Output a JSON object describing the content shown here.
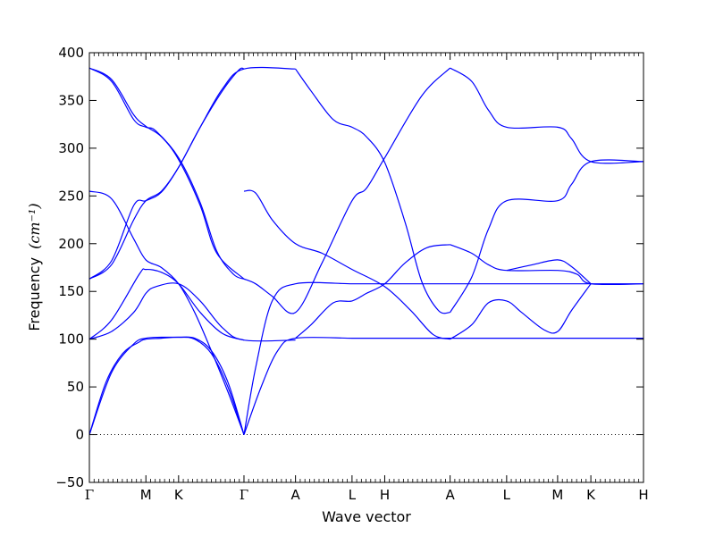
{
  "chart_data": {
    "type": "line",
    "xlabel": "Wave vector",
    "ylabel": "Frequency",
    "ylabel_unit": "(cm⁻¹)",
    "ylim": [
      -50,
      400
    ],
    "yticks": [
      -50,
      0,
      50,
      100,
      150,
      200,
      250,
      300,
      350,
      400
    ],
    "ytick_labels": [
      "−50",
      "0",
      "50",
      "100",
      "150",
      "200",
      "250",
      "300",
      "350",
      "400"
    ],
    "zero_line": "dotted",
    "grid": false,
    "color": "#0000ff",
    "x_path": [
      {
        "label": "Γ",
        "pos": 0.0
      },
      {
        "label": "M",
        "pos": 0.102
      },
      {
        "label": "K",
        "pos": 0.161
      },
      {
        "label": "Γ",
        "pos": 0.279
      },
      {
        "label": "A",
        "pos": 0.372
      },
      {
        "label": "L",
        "pos": 0.474
      },
      {
        "label": "H",
        "pos": 0.533
      },
      {
        "label": "A",
        "pos": 0.651
      },
      {
        "label": "L",
        "pos": 0.753
      },
      {
        "label": "M",
        "pos": 0.845
      },
      {
        "label": "K",
        "pos": 0.905
      },
      {
        "label": "H",
        "pos": 1.0
      }
    ],
    "series": [
      {
        "points": [
          [
            0.0,
            0
          ],
          [
            0.03,
            55
          ],
          [
            0.06,
            85
          ],
          [
            0.09,
            97
          ],
          [
            0.102,
            100
          ],
          [
            0.13,
            101
          ],
          [
            0.161,
            102
          ],
          [
            0.19,
            100
          ],
          [
            0.22,
            85
          ],
          [
            0.25,
            50
          ],
          [
            0.279,
            0
          ]
        ]
      },
      {
        "points": [
          [
            0.0,
            0
          ],
          [
            0.04,
            65
          ],
          [
            0.08,
            95
          ],
          [
            0.102,
            101
          ],
          [
            0.13,
            102
          ],
          [
            0.161,
            102
          ],
          [
            0.19,
            101
          ],
          [
            0.22,
            88
          ],
          [
            0.25,
            55
          ],
          [
            0.279,
            0
          ]
        ]
      },
      {
        "points": [
          [
            0.0,
            100
          ],
          [
            0.04,
            108
          ],
          [
            0.08,
            128
          ],
          [
            0.102,
            148
          ],
          [
            0.12,
            155
          ],
          [
            0.161,
            158
          ],
          [
            0.2,
            140
          ],
          [
            0.24,
            112
          ],
          [
            0.279,
            99
          ],
          [
            0.372,
            99
          ]
        ]
      },
      {
        "points": [
          [
            0.0,
            100
          ],
          [
            0.04,
            120
          ],
          [
            0.09,
            168
          ],
          [
            0.102,
            173
          ],
          [
            0.13,
            170
          ],
          [
            0.161,
            158
          ],
          [
            0.2,
            128
          ],
          [
            0.24,
            106
          ],
          [
            0.279,
            99
          ]
        ]
      },
      {
        "points": [
          [
            0.0,
            255
          ],
          [
            0.04,
            247
          ],
          [
            0.08,
            205
          ],
          [
            0.102,
            183
          ],
          [
            0.13,
            175
          ],
          [
            0.161,
            158
          ],
          [
            0.19,
            128
          ],
          [
            0.22,
            88
          ],
          [
            0.25,
            45
          ],
          [
            0.279,
            0
          ]
        ]
      },
      {
        "points": [
          [
            0.0,
            163
          ],
          [
            0.04,
            178
          ],
          [
            0.08,
            225
          ],
          [
            0.102,
            245
          ],
          [
            0.13,
            255
          ],
          [
            0.161,
            280
          ],
          [
            0.2,
            322
          ],
          [
            0.24,
            360
          ],
          [
            0.27,
            382
          ],
          [
            0.279,
            383
          ]
        ]
      },
      {
        "points": [
          [
            0.0,
            163
          ],
          [
            0.04,
            182
          ],
          [
            0.08,
            240
          ],
          [
            0.102,
            245
          ],
          [
            0.13,
            254
          ],
          [
            0.161,
            280
          ],
          [
            0.2,
            322
          ],
          [
            0.24,
            362
          ],
          [
            0.279,
            383
          ],
          [
            0.372,
            383
          ]
        ]
      },
      {
        "points": [
          [
            0.0,
            384
          ],
          [
            0.04,
            370
          ],
          [
            0.08,
            330
          ],
          [
            0.102,
            322
          ],
          [
            0.12,
            318
          ],
          [
            0.161,
            290
          ],
          [
            0.2,
            243
          ],
          [
            0.23,
            192
          ],
          [
            0.26,
            168
          ],
          [
            0.279,
            163
          ]
        ]
      },
      {
        "points": [
          [
            0.0,
            384
          ],
          [
            0.04,
            372
          ],
          [
            0.08,
            335
          ],
          [
            0.102,
            323
          ],
          [
            0.13,
            312
          ],
          [
            0.161,
            288
          ],
          [
            0.2,
            240
          ],
          [
            0.23,
            190
          ],
          [
            0.279,
            163
          ]
        ]
      },
      {
        "points": [
          [
            0.279,
            255
          ],
          [
            0.3,
            253
          ],
          [
            0.33,
            225
          ],
          [
            0.372,
            200
          ],
          [
            0.42,
            190
          ],
          [
            0.474,
            173
          ],
          [
            0.533,
            155
          ],
          [
            0.58,
            130
          ],
          [
            0.62,
            105
          ],
          [
            0.651,
            100
          ]
        ]
      },
      {
        "points": [
          [
            0.279,
            163
          ],
          [
            0.3,
            158
          ],
          [
            0.33,
            145
          ],
          [
            0.372,
            128
          ],
          [
            0.42,
            180
          ],
          [
            0.474,
            245
          ],
          [
            0.5,
            258
          ],
          [
            0.533,
            290
          ],
          [
            0.6,
            355
          ],
          [
            0.651,
            384
          ]
        ]
      },
      {
        "points": [
          [
            0.279,
            0
          ],
          [
            0.3,
            70
          ],
          [
            0.33,
            140
          ],
          [
            0.372,
            158
          ],
          [
            0.474,
            158
          ],
          [
            0.533,
            158
          ],
          [
            0.651,
            158
          ],
          [
            0.753,
            158
          ],
          [
            0.845,
            158
          ],
          [
            0.905,
            158
          ],
          [
            1.0,
            158
          ]
        ]
      },
      {
        "points": [
          [
            0.279,
            0
          ],
          [
            0.31,
            50
          ],
          [
            0.34,
            88
          ],
          [
            0.372,
            101
          ],
          [
            0.474,
            101
          ],
          [
            0.533,
            101
          ],
          [
            0.651,
            101
          ],
          [
            0.753,
            101
          ],
          [
            0.845,
            101
          ],
          [
            0.905,
            101
          ],
          [
            1.0,
            101
          ]
        ]
      },
      {
        "points": [
          [
            0.372,
            383
          ],
          [
            0.4,
            360
          ],
          [
            0.44,
            330
          ],
          [
            0.474,
            322
          ],
          [
            0.5,
            312
          ],
          [
            0.533,
            285
          ],
          [
            0.57,
            222
          ],
          [
            0.6,
            160
          ],
          [
            0.63,
            130
          ],
          [
            0.651,
            128
          ]
        ]
      },
      {
        "points": [
          [
            0.372,
            101
          ],
          [
            0.4,
            115
          ],
          [
            0.44,
            138
          ],
          [
            0.474,
            140
          ],
          [
            0.5,
            148
          ],
          [
            0.533,
            158
          ],
          [
            0.57,
            180
          ],
          [
            0.61,
            196
          ],
          [
            0.651,
            199
          ]
        ]
      },
      {
        "points": [
          [
            0.651,
            199
          ],
          [
            0.69,
            190
          ],
          [
            0.72,
            178
          ],
          [
            0.753,
            172
          ],
          [
            0.845,
            172
          ],
          [
            0.88,
            168
          ],
          [
            0.905,
            158
          ],
          [
            1.0,
            158
          ]
        ]
      },
      {
        "points": [
          [
            0.651,
            100
          ],
          [
            0.69,
            115
          ],
          [
            0.72,
            138
          ],
          [
            0.753,
            140
          ],
          [
            0.78,
            128
          ],
          [
            0.82,
            110
          ],
          [
            0.845,
            108
          ],
          [
            0.87,
            130
          ],
          [
            0.905,
            158
          ]
        ]
      },
      {
        "points": [
          [
            0.651,
            128
          ],
          [
            0.69,
            165
          ],
          [
            0.72,
            215
          ],
          [
            0.753,
            245
          ],
          [
            0.845,
            245
          ],
          [
            0.87,
            262
          ],
          [
            0.905,
            286
          ],
          [
            1.0,
            286
          ]
        ]
      },
      {
        "points": [
          [
            0.651,
            384
          ],
          [
            0.69,
            370
          ],
          [
            0.72,
            340
          ],
          [
            0.753,
            322
          ],
          [
            0.845,
            322
          ],
          [
            0.87,
            310
          ],
          [
            0.905,
            286
          ],
          [
            1.0,
            286
          ]
        ]
      },
      {
        "points": [
          [
            0.753,
            172
          ],
          [
            0.8,
            178
          ],
          [
            0.845,
            183
          ],
          [
            0.87,
            176
          ],
          [
            0.905,
            158
          ]
        ]
      }
    ]
  }
}
